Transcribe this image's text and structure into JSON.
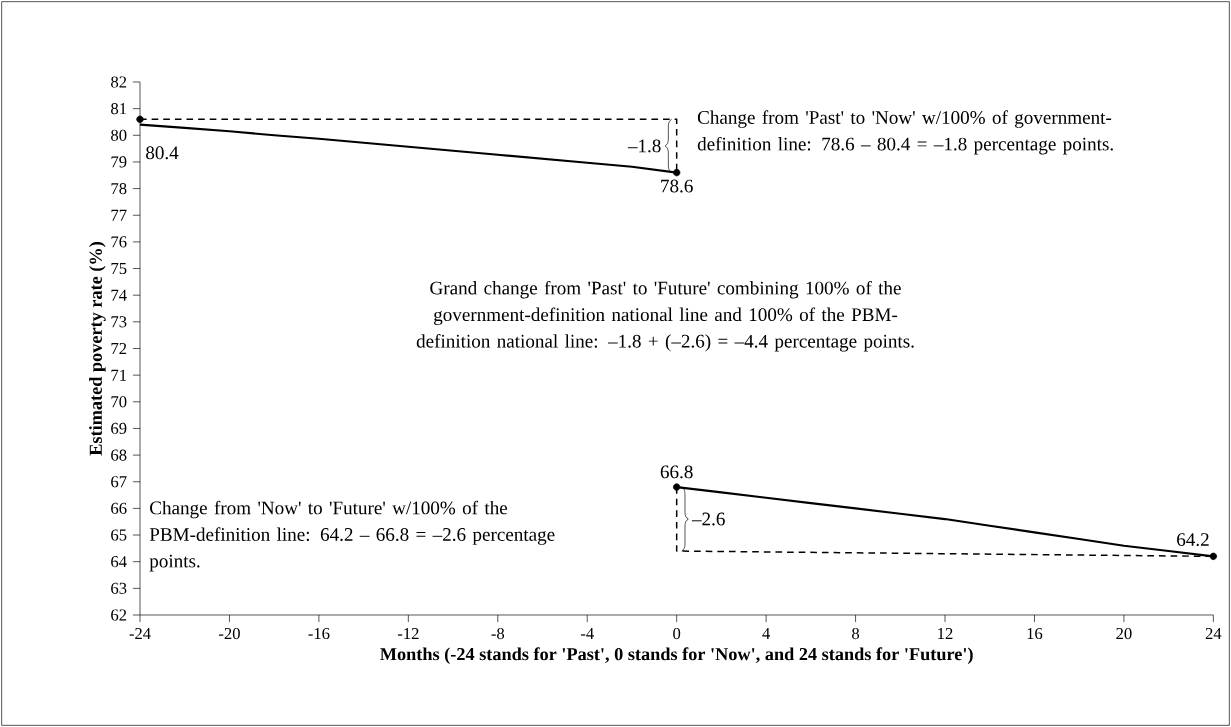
{
  "chart_data": {
    "type": "line",
    "xlabel": "Months (-24 stands for 'Past', 0 stands for 'Now', and 24 stands for 'Future')",
    "ylabel": "Estimated poverty rate (%)",
    "xlim": [
      -24,
      24
    ],
    "xticks": [
      -24,
      -20,
      -16,
      -12,
      -8,
      -4,
      0,
      4,
      8,
      12,
      16,
      20,
      24
    ],
    "ylim": [
      62,
      82
    ],
    "yticks": [
      62,
      63,
      64,
      65,
      66,
      67,
      68,
      69,
      70,
      71,
      72,
      73,
      74,
      75,
      76,
      77,
      78,
      79,
      80,
      81,
      82
    ],
    "grid": false,
    "series": [
      {
        "color": "#000000",
        "line_style": "solid",
        "marker": "none",
        "x": [
          -24,
          -22,
          -20,
          -18,
          -16,
          -14,
          -12,
          -10,
          -8,
          -6,
          -4,
          -2,
          0
        ],
        "values": [
          80.4,
          80.28,
          80.15,
          80.0,
          79.87,
          79.72,
          79.57,
          79.42,
          79.27,
          79.12,
          78.97,
          78.82,
          78.6
        ]
      },
      {
        "color": "#000000",
        "line_style": "solid",
        "marker": "none",
        "x": [
          0,
          2,
          4,
          6,
          8,
          10,
          12,
          14,
          16,
          18,
          20,
          22,
          24
        ],
        "values": [
          66.8,
          66.6,
          66.4,
          66.2,
          66.0,
          65.8,
          65.6,
          65.35,
          65.1,
          64.85,
          64.6,
          64.4,
          64.2
        ]
      },
      {
        "color": "#000000",
        "line_style": "dashed",
        "marker": "none",
        "x": [
          -24,
          0,
          0
        ],
        "values": [
          80.6,
          80.6,
          78.6
        ]
      },
      {
        "color": "#000000",
        "line_style": "dashed",
        "marker": "none",
        "x": [
          0,
          0,
          24
        ],
        "values": [
          66.8,
          64.4,
          64.2
        ]
      },
      {
        "type": "scatter",
        "color": "#000000",
        "marker": "circle",
        "x": [
          -24,
          0,
          0,
          24
        ],
        "values": [
          80.6,
          78.6,
          66.8,
          64.2
        ]
      }
    ],
    "annotations": [
      {
        "text": "80.4",
        "x": -24,
        "y": 80.4
      },
      {
        "text": "78.6",
        "x": 0,
        "y": 78.6
      },
      {
        "text": "66.8",
        "x": 0,
        "y": 66.8
      },
      {
        "text": "64.2",
        "x": 24,
        "y": 64.2
      },
      "–1.8",
      "–2.6",
      "Change from 'Past' to 'Now' w/100% of government-definition line: 78.6 – 80.4 = –1.8 percentage points.",
      "Grand change from 'Past' to 'Future' combining 100% of the government-definition national line and 100% of the PBM-definition national line: –1.8 + (–2.6) = –4.4 percentage points.",
      "Change from 'Now' to 'Future' w/100% of the PBM-definition line: 64.2 – 66.8 = –2.6 percentage points."
    ]
  }
}
